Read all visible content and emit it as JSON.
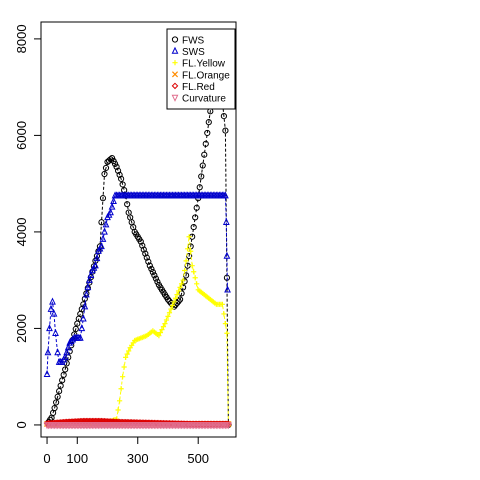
{
  "chart_data": {
    "type": "line",
    "title": "",
    "xlabel": "",
    "ylabel": "",
    "xlim": [
      -20,
      625
    ],
    "ylim": [
      -250,
      8350
    ],
    "x_ticks": [
      0,
      100,
      300,
      500
    ],
    "x_tick_labels": [
      "0",
      "100",
      "300",
      "500"
    ],
    "y_ticks": [
      0,
      2000,
      4000,
      6000,
      8000
    ],
    "y_tick_labels": [
      "0",
      "2000",
      "4000",
      "6000",
      "8000"
    ],
    "grid": false,
    "legend_position": "top-right",
    "series": [
      {
        "name": "FWS",
        "color": "#000000",
        "marker": "circle",
        "points": [
          [
            5,
            60
          ],
          [
            15,
            150
          ],
          [
            25,
            350
          ],
          [
            40,
            700
          ],
          [
            60,
            1150
          ],
          [
            80,
            1650
          ],
          [
            100,
            2100
          ],
          [
            120,
            2500
          ],
          [
            140,
            2950
          ],
          [
            160,
            3400
          ],
          [
            175,
            3700
          ],
          [
            180,
            4200
          ],
          [
            190,
            5200
          ],
          [
            200,
            5450
          ],
          [
            215,
            5530
          ],
          [
            230,
            5350
          ],
          [
            245,
            5100
          ],
          [
            260,
            4750
          ],
          [
            270,
            4400
          ],
          [
            290,
            4000
          ],
          [
            310,
            3800
          ],
          [
            340,
            3300
          ],
          [
            370,
            2900
          ],
          [
            400,
            2600
          ],
          [
            420,
            2450
          ],
          [
            440,
            2600
          ],
          [
            460,
            3100
          ],
          [
            480,
            3900
          ],
          [
            500,
            4700
          ],
          [
            520,
            5600
          ],
          [
            540,
            6500
          ],
          [
            548,
            6800
          ],
          [
            560,
            7100
          ],
          [
            575,
            7000
          ],
          [
            590,
            6100
          ],
          [
            600,
            0
          ]
        ]
      },
      {
        "name": "SWS",
        "color": "#0000cc",
        "marker": "triangle",
        "points": [
          [
            0,
            1050
          ],
          [
            3,
            1500
          ],
          [
            8,
            2000
          ],
          [
            13,
            2400
          ],
          [
            18,
            2550
          ],
          [
            23,
            2300
          ],
          [
            28,
            1900
          ],
          [
            35,
            1500
          ],
          [
            40,
            1300
          ],
          [
            50,
            1300
          ],
          [
            60,
            1400
          ],
          [
            75,
            1700
          ],
          [
            90,
            1800
          ],
          [
            110,
            1800
          ],
          [
            120,
            2200
          ],
          [
            130,
            2700
          ],
          [
            140,
            3000
          ],
          [
            150,
            3200
          ],
          [
            160,
            3300
          ],
          [
            170,
            3600
          ],
          [
            180,
            3700
          ],
          [
            190,
            4000
          ],
          [
            200,
            4300
          ],
          [
            210,
            4400
          ],
          [
            225,
            4750
          ],
          [
            240,
            4750
          ],
          [
            300,
            4750
          ],
          [
            350,
            4750
          ],
          [
            400,
            4750
          ],
          [
            450,
            4750
          ],
          [
            500,
            4750
          ],
          [
            550,
            4750
          ],
          [
            590,
            4750
          ],
          [
            593,
            4200
          ],
          [
            595,
            3500
          ],
          [
            597,
            2800
          ]
        ]
      },
      {
        "name": "FL.Yellow",
        "color": "#ffff00",
        "marker": "plus",
        "points": [
          [
            0,
            0
          ],
          [
            100,
            30
          ],
          [
            200,
            60
          ],
          [
            230,
            120
          ],
          [
            240,
            500
          ],
          [
            250,
            1000
          ],
          [
            260,
            1400
          ],
          [
            275,
            1600
          ],
          [
            290,
            1750
          ],
          [
            310,
            1800
          ],
          [
            330,
            1850
          ],
          [
            350,
            1950
          ],
          [
            370,
            1850
          ],
          [
            390,
            2100
          ],
          [
            410,
            2400
          ],
          [
            430,
            2700
          ],
          [
            450,
            3000
          ],
          [
            460,
            3400
          ],
          [
            470,
            3900
          ],
          [
            480,
            3300
          ],
          [
            500,
            2800
          ],
          [
            520,
            2700
          ],
          [
            540,
            2600
          ],
          [
            560,
            2500
          ],
          [
            580,
            2500
          ],
          [
            595,
            1900
          ],
          [
            600,
            0
          ]
        ]
      },
      {
        "name": "FL.Orange",
        "color": "#ff8c00",
        "marker": "cross",
        "points": [
          [
            0,
            20
          ],
          [
            100,
            20
          ],
          [
            200,
            20
          ],
          [
            300,
            20
          ],
          [
            400,
            20
          ],
          [
            500,
            20
          ],
          [
            600,
            20
          ]
        ]
      },
      {
        "name": "FL.Red",
        "color": "#dd0000",
        "marker": "diamond",
        "points": [
          [
            0,
            30
          ],
          [
            60,
            60
          ],
          [
            120,
            80
          ],
          [
            180,
            80
          ],
          [
            240,
            60
          ],
          [
            300,
            50
          ],
          [
            360,
            40
          ],
          [
            420,
            30
          ],
          [
            480,
            20
          ],
          [
            540,
            20
          ],
          [
            600,
            20
          ]
        ]
      },
      {
        "name": "Curvature",
        "color": "#e06c8c",
        "marker": "triangle-down",
        "points": [
          [
            0,
            0
          ],
          [
            100,
            0
          ],
          [
            200,
            0
          ],
          [
            300,
            0
          ],
          [
            400,
            0
          ],
          [
            500,
            0
          ],
          [
            600,
            0
          ]
        ]
      }
    ]
  }
}
